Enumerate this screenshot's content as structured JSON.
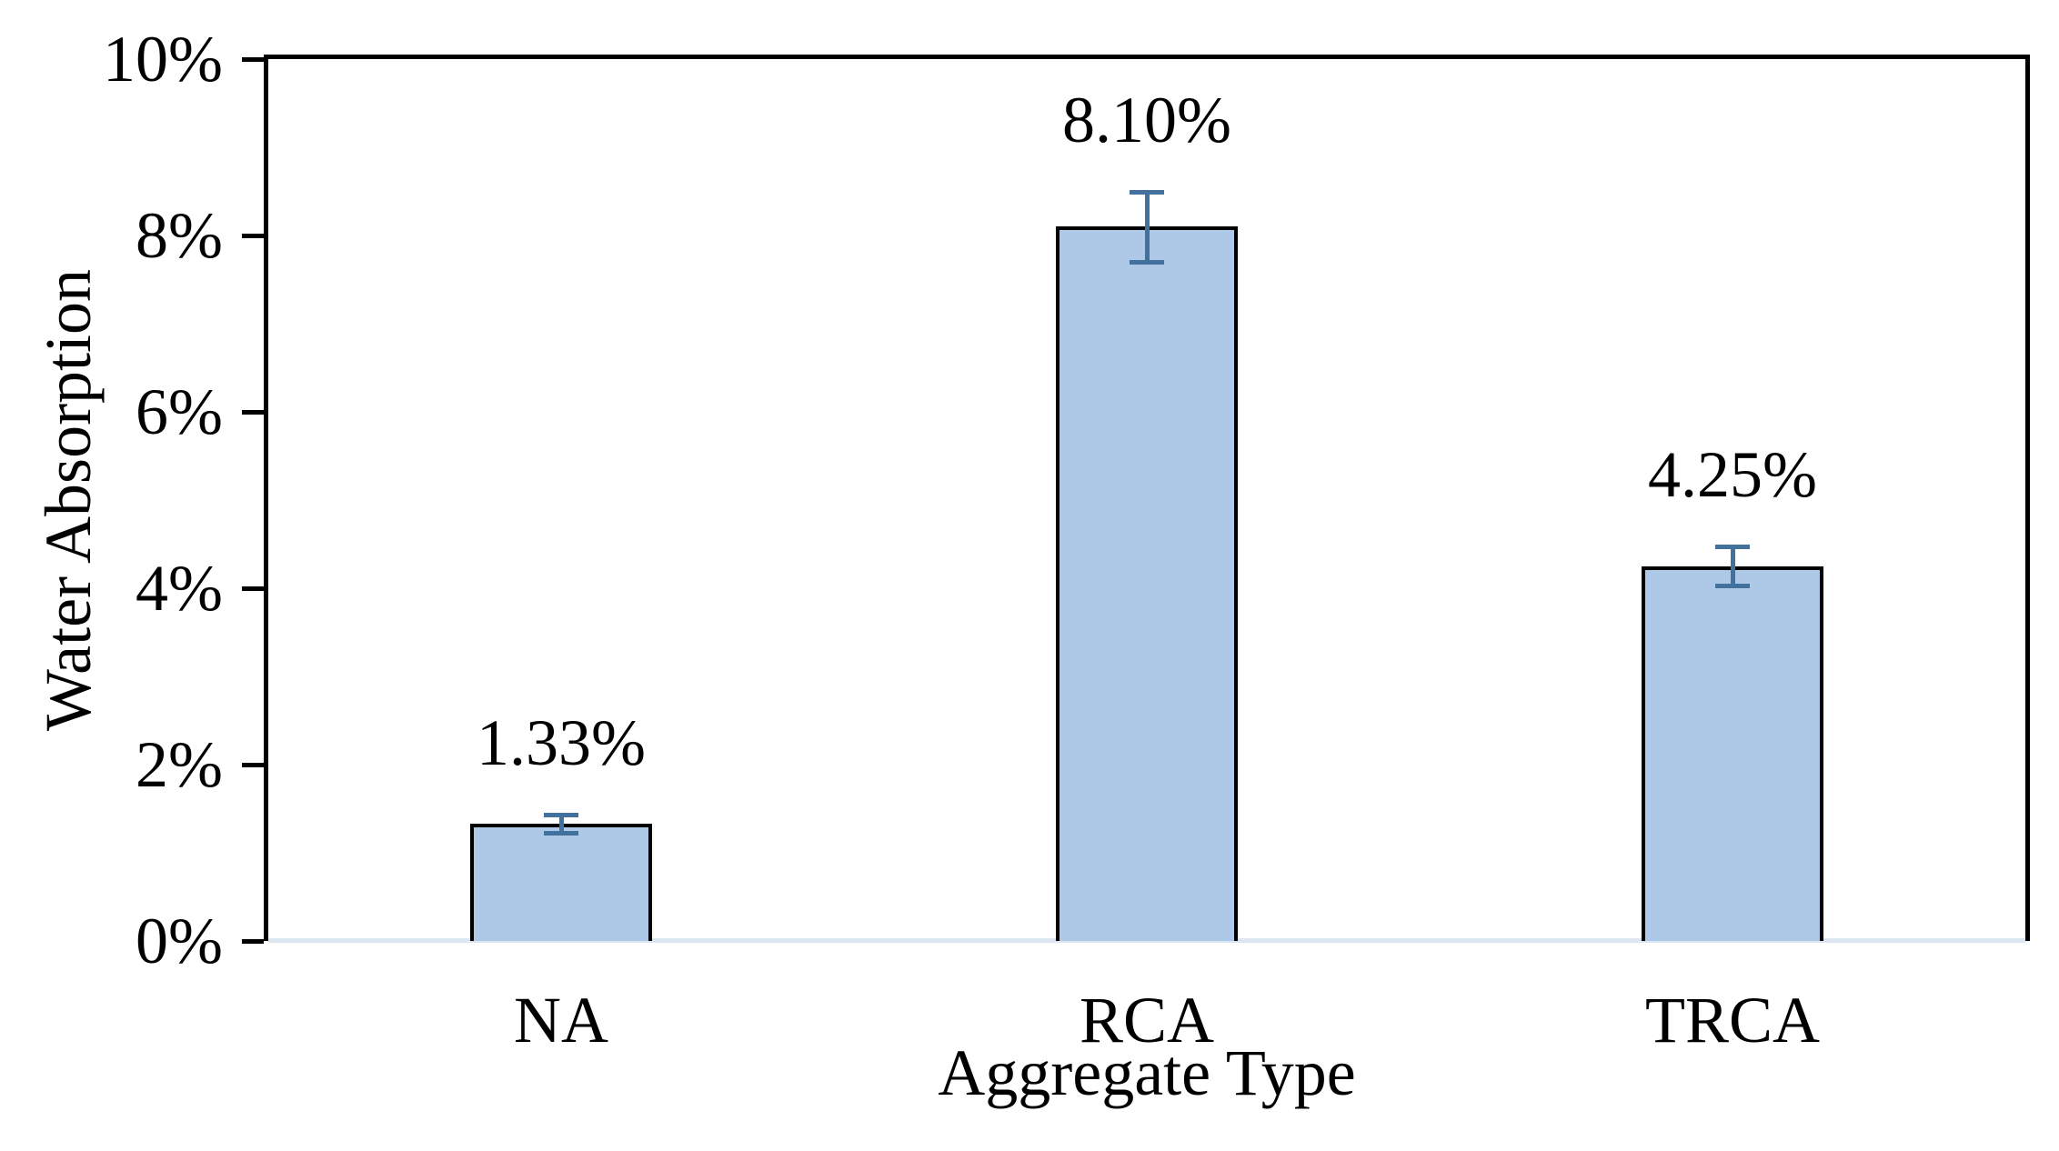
{
  "chart_data": {
    "type": "bar",
    "title": "",
    "xlabel": "Aggregate Type",
    "ylabel": "Water Absorption",
    "categories": [
      "NA",
      "RCA",
      "TRCA"
    ],
    "values": [
      1.33,
      8.1,
      4.25
    ],
    "data_labels": [
      "1.33%",
      "8.10%",
      "4.25%"
    ],
    "error_bars_pct": [
      0.1,
      0.4,
      0.22
    ],
    "y_tick_values": [
      0,
      2,
      4,
      6,
      8,
      10
    ],
    "y_tick_labels": [
      "0%",
      "2%",
      "4%",
      "6%",
      "8%",
      "10%"
    ],
    "ylim": [
      0,
      10
    ],
    "grid": false,
    "legend": false,
    "colors": {
      "bar_fill": "#aec9e8",
      "bar_border": "#000000",
      "error_bar": "#41719c",
      "baseline": "#dce6f1",
      "axis": "#000000",
      "text": "#000000"
    }
  }
}
